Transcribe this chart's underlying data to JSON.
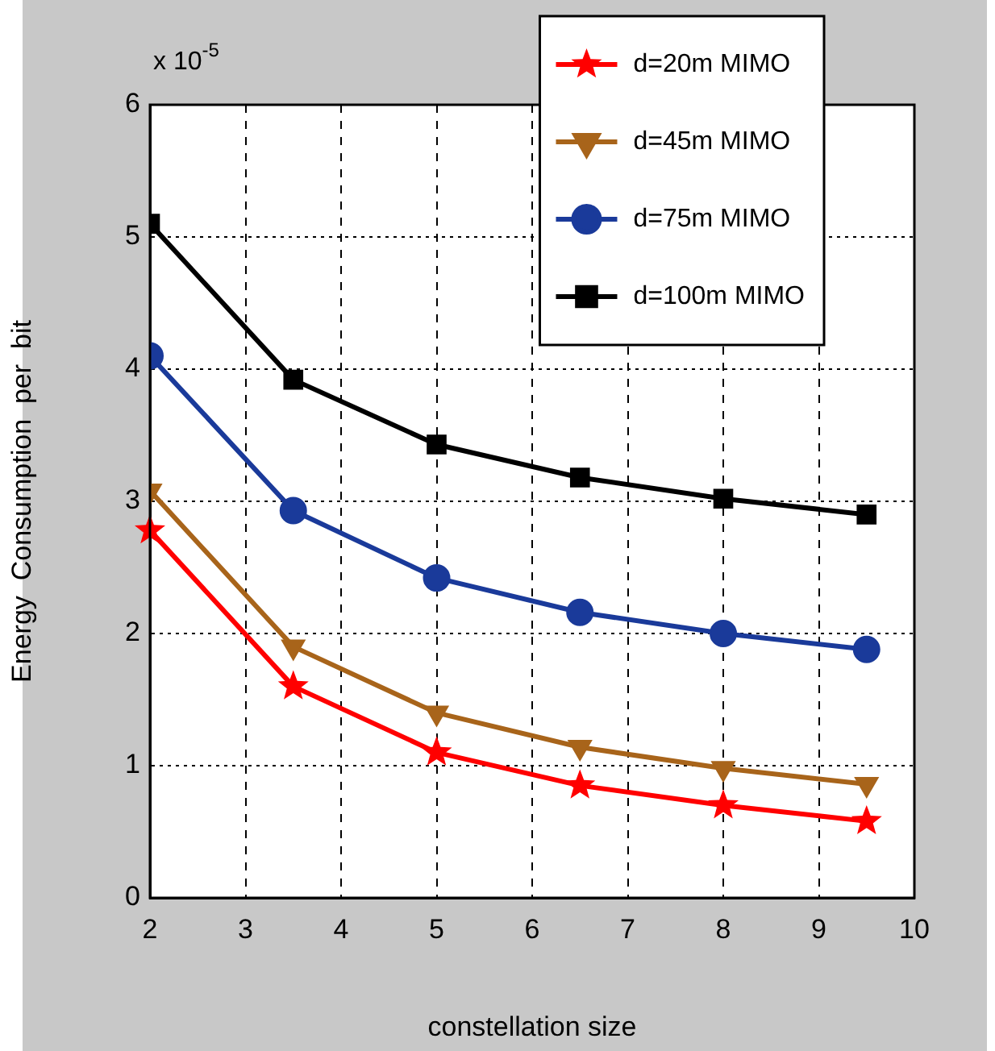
{
  "chart_data": {
    "type": "line",
    "xlabel": "constellation size",
    "ylabel": "Energy  Consumption  per  bit",
    "annotations": [
      "x 10$^{-5}$"
    ],
    "x": [
      2,
      3.5,
      5,
      6.5,
      8,
      9.5
    ],
    "xlim": [
      2,
      10
    ],
    "xticks": [
      2,
      3,
      4,
      5,
      6,
      7,
      8,
      9,
      10
    ],
    "ylim": [
      0,
      6
    ],
    "yticks": [
      0,
      1,
      2,
      3,
      4,
      5,
      6
    ],
    "grid": true,
    "legend": "top right",
    "line_style": "solid",
    "series": [
      {
        "name": "d=20m MIMO",
        "color": "#ff0000",
        "marker": "star",
        "values": [
          2.78,
          1.6,
          1.1,
          0.85,
          0.7,
          0.58
        ]
      },
      {
        "name": "d=45m MIMO",
        "color": "#a8641a",
        "marker": "triangle",
        "values": [
          3.08,
          1.9,
          1.4,
          1.14,
          0.98,
          0.86
        ]
      },
      {
        "name": "d=75m MIMO",
        "color": "#1a3a9a",
        "marker": "circle",
        "values": [
          4.1,
          2.93,
          2.42,
          2.16,
          2.0,
          1.88
        ]
      },
      {
        "name": "d=100m MIMO",
        "color": "#000000",
        "marker": "square",
        "values": [
          5.1,
          3.92,
          3.43,
          3.18,
          3.02,
          2.9
        ]
      }
    ]
  }
}
